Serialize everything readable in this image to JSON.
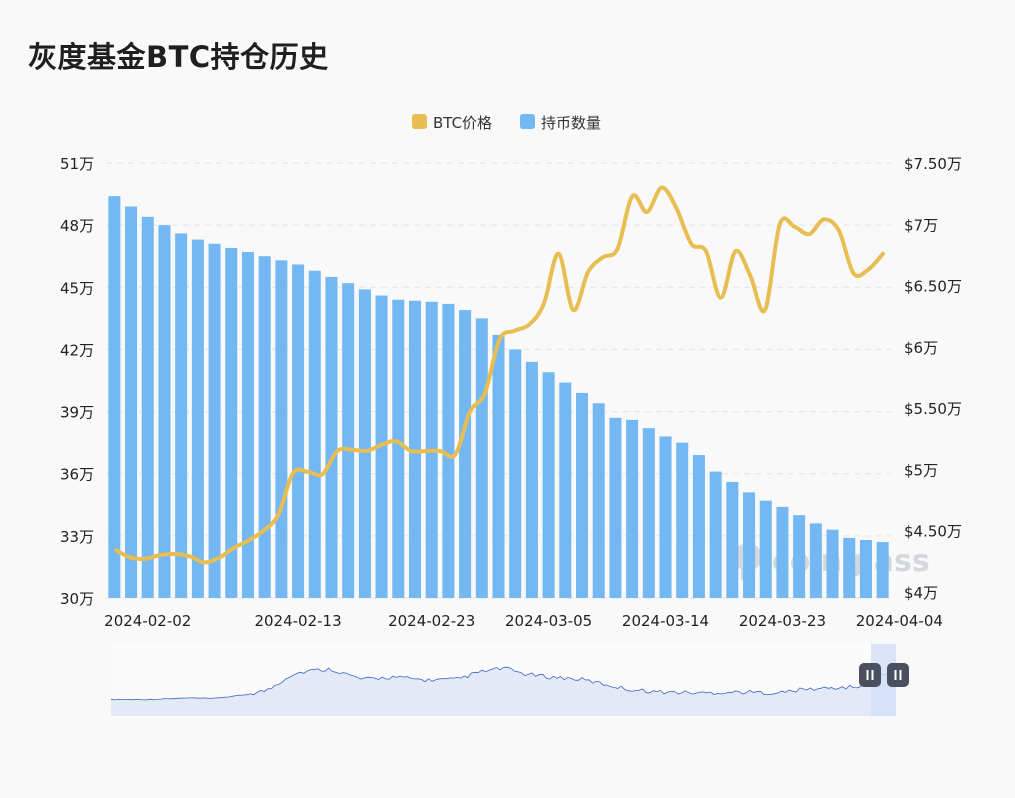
{
  "title": "灰度基金BTC持仓历史",
  "watermark": "coinglass",
  "colors": {
    "price": "#e8bd52",
    "holdings": "#74b8f3",
    "grid": "#e4e4e4",
    "slider_fill": "#e3e9f7",
    "slider_line": "#3b66c6",
    "slider_handle": "#4a5060"
  },
  "chart_data": {
    "type": "bar",
    "legend": [
      {
        "name": "BTC价格",
        "color": "#e8bd52"
      },
      {
        "name": "持币数量",
        "color": "#74b8f3"
      }
    ],
    "legend_position": "top-center",
    "grid": true,
    "x_tick_labels": [
      "2024-02-02",
      "2024-02-13",
      "2024-02-23",
      "2024-03-05",
      "2024-03-14",
      "2024-03-23",
      "2024-04-04"
    ],
    "x_tick_indices": [
      2,
      11,
      19,
      26,
      33,
      40,
      47
    ],
    "y_left": {
      "ticks": [
        30,
        33,
        36,
        39,
        42,
        45,
        48,
        51
      ],
      "tick_labels": [
        "30万",
        "33万",
        "36万",
        "39万",
        "42万",
        "45万",
        "48万",
        "51万"
      ],
      "range": [
        30,
        51
      ],
      "unit": "万"
    },
    "y_right": {
      "ticks": [
        4,
        4.5,
        5,
        5.5,
        6,
        6.5,
        7,
        7.5
      ],
      "tick_labels": [
        "$4万",
        "$4.50万",
        "$5万",
        "$5.50万",
        "$6万",
        "$6.50万",
        "$7万",
        "$7.50万"
      ],
      "range": [
        3.95,
        7.5
      ],
      "unit": "万"
    },
    "series": [
      {
        "name": "持币数量",
        "type": "bar",
        "axis": "left",
        "values": [
          49.4,
          48.9,
          48.4,
          48.0,
          47.6,
          47.3,
          47.1,
          46.9,
          46.7,
          46.5,
          46.3,
          46.1,
          45.8,
          45.5,
          45.2,
          44.9,
          44.6,
          44.4,
          44.35,
          44.3,
          44.2,
          43.9,
          43.5,
          42.7,
          42.0,
          41.4,
          40.9,
          40.4,
          39.9,
          39.4,
          38.7,
          38.6,
          38.2,
          37.8,
          37.5,
          36.9,
          36.1,
          35.6,
          35.1,
          34.7,
          34.4,
          34.0,
          33.6,
          33.3,
          32.9,
          32.8,
          32.7
        ]
      },
      {
        "name": "BTC价格",
        "type": "line",
        "axis": "right",
        "values": [
          4.34,
          4.28,
          4.27,
          4.3,
          4.31,
          4.29,
          4.24,
          4.28,
          4.36,
          4.42,
          4.5,
          4.63,
          4.97,
          4.98,
          4.96,
          5.15,
          5.16,
          5.15,
          5.2,
          5.23,
          5.15,
          5.15,
          5.15,
          5.12,
          5.47,
          5.62,
          6.06,
          6.13,
          6.18,
          6.35,
          6.76,
          6.3,
          6.61,
          6.73,
          6.8,
          7.23,
          7.1,
          7.3,
          7.13,
          6.84,
          6.78,
          6.4,
          6.78,
          6.58,
          6.3,
          7.0,
          6.98,
          6.92,
          7.04,
          6.95,
          6.6,
          6.63,
          6.76
        ]
      }
    ]
  }
}
